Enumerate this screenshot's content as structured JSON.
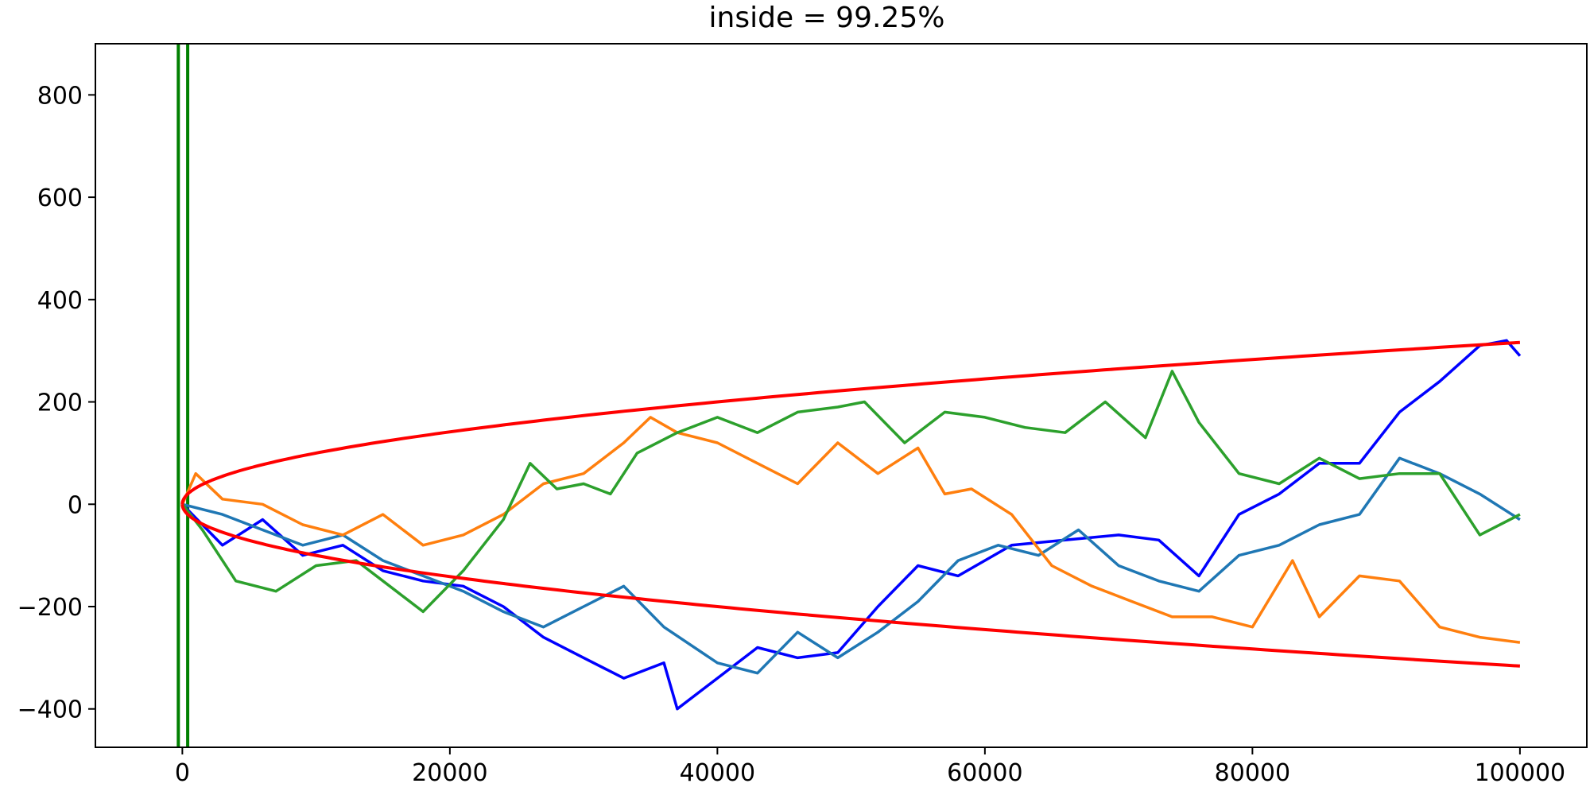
{
  "chart_data": {
    "type": "line",
    "title": "inside = 99.25%",
    "xlabel": "",
    "ylabel": "",
    "xlim": [
      -6500,
      105000
    ],
    "ylim": [
      -475,
      900
    ],
    "x_ticks": [
      0,
      20000,
      40000,
      60000,
      80000,
      100000
    ],
    "y_ticks": [
      -400,
      -200,
      0,
      200,
      400,
      600,
      800
    ],
    "x_tick_labels": [
      "0",
      "20000",
      "40000",
      "60000",
      "80000",
      "100000"
    ],
    "y_tick_labels": [
      "−400",
      "−200",
      "0",
      "200",
      "400",
      "600",
      "800"
    ],
    "grid": false,
    "legend": "none",
    "vertical_lines": [
      {
        "x": -300,
        "color": "#008000"
      },
      {
        "x": 400,
        "color": "#008000"
      }
    ],
    "envelope": {
      "formula": "±sqrt(x)",
      "x_max": 100000,
      "color": "#ff0000"
    },
    "series": [
      {
        "color": "#0000ff",
        "x": [
          0,
          3000,
          6000,
          9000,
          12000,
          15000,
          18000,
          21000,
          24000,
          27000,
          30000,
          33000,
          36000,
          37000,
          40000,
          43000,
          46000,
          49000,
          52000,
          55000,
          58000,
          62000,
          66000,
          70000,
          73000,
          76000,
          79000,
          82000,
          85000,
          88000,
          91000,
          94000,
          97000,
          99000,
          100000
        ],
        "y": [
          0,
          -80,
          -30,
          -100,
          -80,
          -130,
          -150,
          -160,
          -200,
          -260,
          -300,
          -340,
          -310,
          -400,
          -340,
          -280,
          -300,
          -290,
          -200,
          -120,
          -140,
          -80,
          -70,
          -60,
          -70,
          -140,
          -20,
          20,
          80,
          80,
          180,
          240,
          310,
          320,
          290
        ]
      },
      {
        "color": "#1f77b4",
        "x": [
          0,
          3000,
          6000,
          9000,
          12000,
          15000,
          18000,
          21000,
          24000,
          27000,
          30000,
          33000,
          36000,
          40000,
          43000,
          46000,
          49000,
          52000,
          55000,
          58000,
          61000,
          64000,
          67000,
          70000,
          73000,
          76000,
          79000,
          82000,
          85000,
          88000,
          91000,
          94000,
          97000,
          100000
        ],
        "y": [
          0,
          -20,
          -50,
          -80,
          -60,
          -110,
          -140,
          -170,
          -210,
          -240,
          -200,
          -160,
          -240,
          -310,
          -330,
          -250,
          -300,
          -250,
          -190,
          -110,
          -80,
          -100,
          -50,
          -120,
          -150,
          -170,
          -100,
          -80,
          -40,
          -20,
          90,
          60,
          20,
          -30
        ]
      },
      {
        "color": "#ff7f0e",
        "x": [
          0,
          1000,
          3000,
          6000,
          9000,
          12000,
          15000,
          18000,
          21000,
          24000,
          27000,
          30000,
          33000,
          35000,
          37000,
          40000,
          43000,
          46000,
          49000,
          52000,
          55000,
          57000,
          59000,
          62000,
          65000,
          68000,
          71000,
          74000,
          77000,
          80000,
          83000,
          85000,
          88000,
          91000,
          94000,
          97000,
          100000
        ],
        "y": [
          0,
          60,
          10,
          0,
          -40,
          -60,
          -20,
          -80,
          -60,
          -20,
          40,
          60,
          120,
          170,
          140,
          120,
          80,
          40,
          120,
          60,
          110,
          20,
          30,
          -20,
          -120,
          -160,
          -190,
          -220,
          -220,
          -240,
          -110,
          -220,
          -140,
          -150,
          -240,
          -260,
          -270
        ]
      },
      {
        "color": "#2ca02c",
        "x": [
          0,
          1500,
          4000,
          7000,
          10000,
          13000,
          16000,
          18000,
          21000,
          24000,
          26000,
          28000,
          30000,
          32000,
          34000,
          37000,
          40000,
          43000,
          46000,
          49000,
          51000,
          54000,
          57000,
          60000,
          63000,
          66000,
          69000,
          72000,
          74000,
          76000,
          79000,
          82000,
          85000,
          88000,
          91000,
          94000,
          97000,
          100000
        ],
        "y": [
          0,
          -50,
          -150,
          -170,
          -120,
          -110,
          -170,
          -210,
          -130,
          -30,
          80,
          30,
          40,
          20,
          100,
          140,
          170,
          140,
          180,
          190,
          200,
          120,
          180,
          170,
          150,
          140,
          200,
          130,
          260,
          160,
          60,
          40,
          90,
          50,
          60,
          60,
          -60,
          -20
        ]
      }
    ]
  }
}
